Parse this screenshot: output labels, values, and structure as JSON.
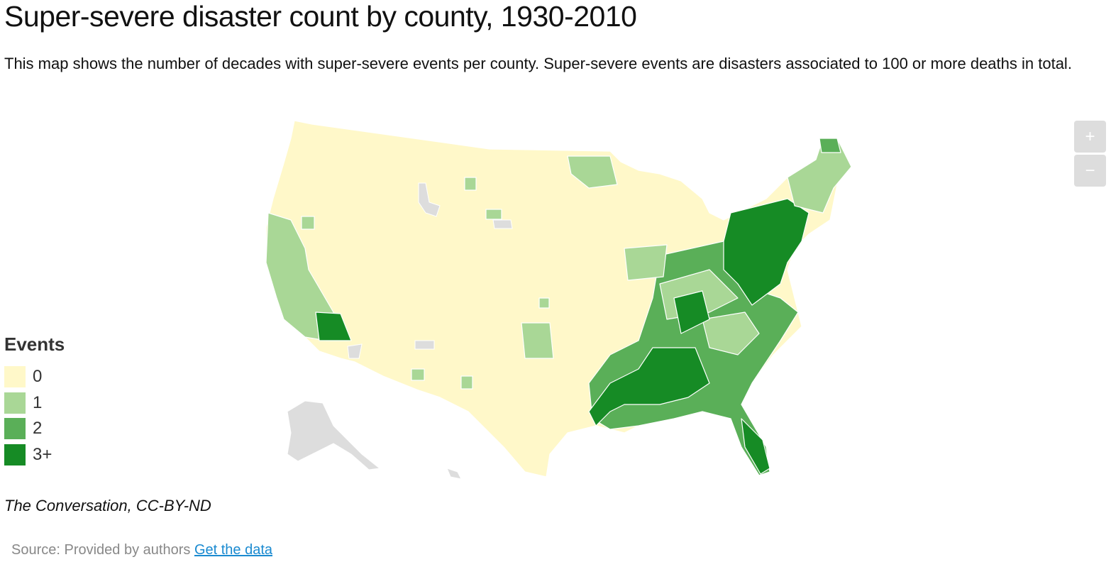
{
  "header": {
    "title": "Super-severe disaster count by county, 1930-2010",
    "description": "This map shows the number of decades with super-severe events per county. Super-severe events are disasters associated to 100 or more deaths in total."
  },
  "legend": {
    "title": "Events",
    "items": [
      {
        "label": "0",
        "color": "#fff8c9"
      },
      {
        "label": "1",
        "color": "#a9d796"
      },
      {
        "label": "2",
        "color": "#5aaf58"
      },
      {
        "label": "3+",
        "color": "#168b25"
      }
    ]
  },
  "zoom": {
    "in": "+",
    "out": "−"
  },
  "credit": "The Conversation, CC-BY-ND",
  "footer": {
    "source": "Source: Provided by authors",
    "link": "Get the data"
  }
}
